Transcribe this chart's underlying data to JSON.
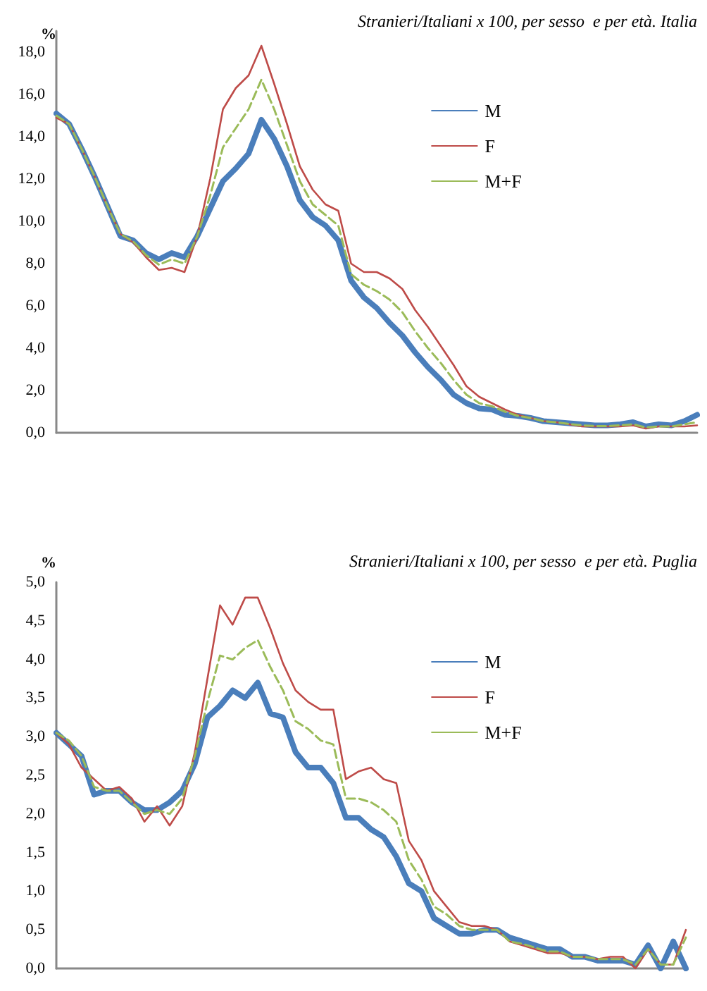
{
  "chart_data": [
    {
      "type": "line",
      "title": "Stranieri/Italiani x 100, per sesso  e per età. Italia",
      "ylabel": "%",
      "categories": [
        null,
        null,
        null,
        null,
        null,
        null,
        null,
        null,
        null,
        null,
        null,
        null,
        null,
        null,
        null,
        null,
        null,
        null,
        null,
        null,
        null,
        null,
        null,
        null,
        null,
        null,
        null,
        null,
        null,
        null,
        null,
        null,
        null,
        null,
        null,
        null,
        null,
        null,
        null,
        null,
        null,
        null,
        null,
        null,
        null,
        null,
        null,
        null,
        null,
        null,
        null
      ],
      "ylim": [
        0,
        19
      ],
      "yticks": [
        {
          "value": 0,
          "label": "0,0"
        },
        {
          "value": 2,
          "label": "2,0"
        },
        {
          "value": 4,
          "label": "4,0"
        },
        {
          "value": 6,
          "label": "6,0"
        },
        {
          "value": 8,
          "label": "8,0"
        },
        {
          "value": 10,
          "label": "10,0"
        },
        {
          "value": 12,
          "label": "12,0"
        },
        {
          "value": 14,
          "label": "14,0"
        },
        {
          "value": 16,
          "label": "16,0"
        },
        {
          "value": 18,
          "label": "18,0"
        }
      ],
      "grid": false,
      "legend": "top right",
      "marker": "none",
      "series": [
        {
          "name": "M",
          "color": "#4a7ebb",
          "line_style": "solid",
          "values": [
            15.1,
            14.6,
            13.4,
            12.1,
            10.7,
            9.3,
            9.1,
            8.5,
            8.2,
            8.5,
            8.3,
            9.3,
            10.6,
            11.9,
            12.5,
            13.2,
            14.8,
            13.9,
            12.6,
            11.0,
            10.2,
            9.8,
            9.1,
            7.2,
            6.4,
            5.9,
            5.2,
            4.6,
            3.8,
            3.1,
            2.5,
            1.8,
            1.4,
            1.15,
            1.1,
            0.85,
            0.8,
            0.7,
            0.55,
            0.5,
            0.45,
            0.4,
            0.35,
            0.35,
            0.4,
            0.5,
            0.3,
            0.4,
            0.35,
            0.55,
            0.85
          ]
        },
        {
          "name": "F",
          "color": "#be4b48",
          "line_style": "solid",
          "values": [
            14.9,
            14.6,
            13.4,
            12.1,
            10.7,
            9.4,
            9.0,
            8.3,
            7.7,
            7.8,
            7.6,
            9.3,
            12.0,
            15.3,
            16.3,
            16.9,
            18.3,
            16.5,
            14.6,
            12.6,
            11.5,
            10.8,
            10.5,
            8.0,
            7.6,
            7.6,
            7.3,
            6.8,
            5.8,
            5.0,
            4.1,
            3.2,
            2.2,
            1.7,
            1.4,
            1.1,
            0.85,
            0.7,
            0.55,
            0.5,
            0.4,
            0.3,
            0.3,
            0.3,
            0.3,
            0.35,
            0.2,
            0.3,
            0.3,
            0.3,
            0.35
          ]
        },
        {
          "name": "M+F",
          "color": "#9bbb59",
          "line_style": "dashed",
          "values": [
            15.0,
            14.6,
            13.4,
            12.1,
            10.7,
            9.4,
            9.05,
            8.4,
            7.95,
            8.2,
            8.0,
            9.3,
            11.2,
            13.5,
            14.4,
            15.3,
            16.7,
            15.3,
            13.6,
            11.9,
            10.8,
            10.3,
            9.8,
            7.5,
            7.0,
            6.7,
            6.3,
            5.7,
            4.8,
            4.0,
            3.3,
            2.5,
            1.8,
            1.4,
            1.25,
            1.0,
            0.8,
            0.7,
            0.55,
            0.5,
            0.42,
            0.35,
            0.32,
            0.32,
            0.35,
            0.4,
            0.25,
            0.3,
            0.3,
            0.4,
            0.5
          ]
        }
      ]
    },
    {
      "type": "line",
      "title": "Stranieri/Italiani x 100, per sesso  e per età. Puglia",
      "ylabel": "%",
      "categories": [
        null,
        null,
        null,
        null,
        null,
        null,
        null,
        null,
        null,
        null,
        null,
        null,
        null,
        null,
        null,
        null,
        null,
        null,
        null,
        null,
        null,
        null,
        null,
        null,
        null,
        null,
        null,
        null,
        null,
        null,
        null,
        null,
        null,
        null,
        null,
        null,
        null,
        null,
        null,
        null,
        null,
        null,
        null,
        null,
        null,
        null,
        null,
        null,
        null,
        null,
        null
      ],
      "ylim": [
        0,
        5
      ],
      "yticks": [
        {
          "value": 0,
          "label": "0,0"
        },
        {
          "value": 0.5,
          "label": "0,5"
        },
        {
          "value": 1,
          "label": "1,0"
        },
        {
          "value": 1.5,
          "label": "1,5"
        },
        {
          "value": 2,
          "label": "2,0"
        },
        {
          "value": 2.5,
          "label": "2,5"
        },
        {
          "value": 3,
          "label": "3,0"
        },
        {
          "value": 3.5,
          "label": "3,5"
        },
        {
          "value": 4,
          "label": "4,0"
        },
        {
          "value": 4.5,
          "label": "4,5"
        },
        {
          "value": 5,
          "label": "5,0"
        }
      ],
      "grid": false,
      "legend": "top right",
      "marker": "none",
      "series": [
        {
          "name": "M",
          "color": "#4a7ebb",
          "line_style": "solid",
          "values": [
            3.05,
            2.9,
            2.75,
            2.25,
            2.3,
            2.3,
            2.15,
            2.05,
            2.05,
            2.15,
            2.3,
            2.65,
            3.25,
            3.4,
            3.6,
            3.5,
            3.7,
            3.3,
            3.25,
            2.8,
            2.6,
            2.6,
            2.4,
            1.95,
            1.95,
            1.8,
            1.7,
            1.45,
            1.1,
            1.0,
            0.65,
            0.55,
            0.45,
            0.45,
            0.5,
            0.5,
            0.4,
            0.35,
            0.3,
            0.25,
            0.25,
            0.15,
            0.15,
            0.1,
            0.1,
            0.1,
            0.05,
            0.3,
            0.0,
            0.35,
            0.0
          ]
        },
        {
          "name": "F",
          "color": "#be4b48",
          "line_style": "solid",
          "values": [
            3.05,
            2.9,
            2.6,
            2.45,
            2.3,
            2.35,
            2.2,
            1.9,
            2.1,
            1.85,
            2.1,
            2.8,
            3.75,
            4.7,
            4.45,
            4.8,
            4.8,
            4.4,
            3.95,
            3.6,
            3.45,
            3.35,
            3.35,
            2.45,
            2.55,
            2.6,
            2.45,
            2.4,
            1.65,
            1.4,
            1.0,
            0.8,
            0.6,
            0.55,
            0.55,
            0.5,
            0.35,
            0.3,
            0.25,
            0.2,
            0.2,
            0.15,
            0.15,
            0.12,
            0.15,
            0.15,
            0.0,
            0.25,
            0.05,
            0.05,
            0.5
          ]
        },
        {
          "name": "M+F",
          "color": "#9bbb59",
          "line_style": "dashed",
          "values": [
            3.05,
            2.95,
            2.75,
            2.35,
            2.3,
            2.3,
            2.15,
            2.0,
            2.05,
            2.0,
            2.2,
            2.75,
            3.45,
            4.05,
            4.0,
            4.15,
            4.25,
            3.9,
            3.6,
            3.2,
            3.1,
            2.95,
            2.9,
            2.2,
            2.2,
            2.15,
            2.05,
            1.9,
            1.4,
            1.15,
            0.8,
            0.7,
            0.55,
            0.5,
            0.5,
            0.5,
            0.35,
            0.32,
            0.27,
            0.22,
            0.22,
            0.15,
            0.15,
            0.12,
            0.12,
            0.12,
            0.05,
            0.25,
            0.05,
            0.05,
            0.4
          ]
        }
      ]
    }
  ]
}
